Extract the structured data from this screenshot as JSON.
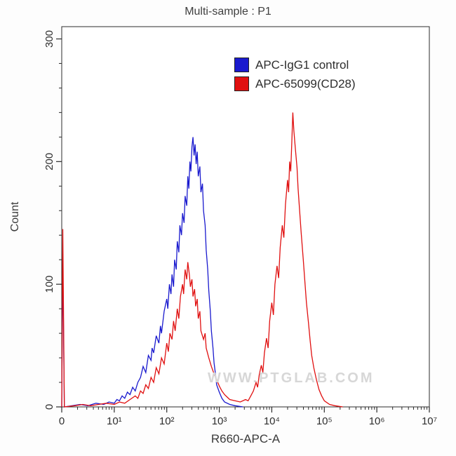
{
  "chart_data": {
    "type": "line",
    "title": "Multi-sample : P1",
    "xlabel": "R660-APC-A",
    "ylabel": "Count",
    "watermark": "WWW.PTGLAB.COM",
    "x_axis": {
      "scale": "log-decades",
      "range_u": [
        0,
        7
      ],
      "ticks": [
        {
          "u": 0,
          "label": "0"
        },
        {
          "u": 1,
          "label": "10¹"
        },
        {
          "u": 2,
          "label": "10²"
        },
        {
          "u": 3,
          "label": "10³"
        },
        {
          "u": 4,
          "label": "10⁴"
        },
        {
          "u": 5,
          "label": "10⁵"
        },
        {
          "u": 6,
          "label": "10⁶"
        },
        {
          "u": 7,
          "label": "10⁷"
        }
      ]
    },
    "y_axis": {
      "ticks": [
        0,
        100,
        200,
        300
      ],
      "minor_step": 20,
      "max": 310
    },
    "legend": [
      {
        "label": "APC-IgG1 control",
        "color": "#1a1ace"
      },
      {
        "label": "APC-65099(CD28)",
        "color": "#e01010"
      }
    ],
    "series": [
      {
        "name": "APC-IgG1 control",
        "color": "#1a1ace",
        "points": [
          [
            0.0,
            0
          ],
          [
            0.02,
            120
          ],
          [
            0.05,
            0
          ],
          [
            0.2,
            1
          ],
          [
            0.35,
            2
          ],
          [
            0.5,
            1
          ],
          [
            0.65,
            3
          ],
          [
            0.8,
            2
          ],
          [
            0.9,
            4
          ],
          [
            1.0,
            3
          ],
          [
            1.05,
            6
          ],
          [
            1.1,
            5
          ],
          [
            1.15,
            9
          ],
          [
            1.2,
            7
          ],
          [
            1.25,
            12
          ],
          [
            1.3,
            10
          ],
          [
            1.35,
            16
          ],
          [
            1.4,
            13
          ],
          [
            1.45,
            20
          ],
          [
            1.5,
            24
          ],
          [
            1.55,
            33
          ],
          [
            1.6,
            28
          ],
          [
            1.65,
            42
          ],
          [
            1.7,
            38
          ],
          [
            1.72,
            48
          ],
          [
            1.75,
            44
          ],
          [
            1.8,
            58
          ],
          [
            1.85,
            52
          ],
          [
            1.88,
            66
          ],
          [
            1.9,
            60
          ],
          [
            1.95,
            78
          ],
          [
            2.0,
            88
          ],
          [
            2.02,
            80
          ],
          [
            2.05,
            100
          ],
          [
            2.08,
            92
          ],
          [
            2.1,
            108
          ],
          [
            2.13,
            98
          ],
          [
            2.15,
            120
          ],
          [
            2.18,
            112
          ],
          [
            2.2,
            135
          ],
          [
            2.23,
            126
          ],
          [
            2.25,
            148
          ],
          [
            2.28,
            140
          ],
          [
            2.3,
            158
          ],
          [
            2.33,
            150
          ],
          [
            2.35,
            172
          ],
          [
            2.38,
            164
          ],
          [
            2.4,
            188
          ],
          [
            2.42,
            178
          ],
          [
            2.44,
            200
          ],
          [
            2.46,
            192
          ],
          [
            2.48,
            212
          ],
          [
            2.5,
            220
          ],
          [
            2.52,
            205
          ],
          [
            2.54,
            214
          ],
          [
            2.56,
            198
          ],
          [
            2.58,
            208
          ],
          [
            2.6,
            188
          ],
          [
            2.63,
            196
          ],
          [
            2.65,
            175
          ],
          [
            2.68,
            182
          ],
          [
            2.7,
            160
          ],
          [
            2.73,
            148
          ],
          [
            2.75,
            128
          ],
          [
            2.78,
            112
          ],
          [
            2.8,
            95
          ],
          [
            2.83,
            78
          ],
          [
            2.85,
            62
          ],
          [
            2.88,
            48
          ],
          [
            2.9,
            36
          ],
          [
            2.93,
            26
          ],
          [
            2.95,
            18
          ],
          [
            3.0,
            12
          ],
          [
            3.05,
            7
          ],
          [
            3.1,
            4
          ],
          [
            3.2,
            2
          ],
          [
            3.3,
            1
          ],
          [
            3.45,
            0
          ]
        ]
      },
      {
        "name": "APC-65099(CD28)",
        "color": "#e01010",
        "points": [
          [
            0.0,
            0
          ],
          [
            0.02,
            145
          ],
          [
            0.05,
            0
          ],
          [
            0.25,
            1
          ],
          [
            0.4,
            2
          ],
          [
            0.55,
            1
          ],
          [
            0.7,
            2
          ],
          [
            0.85,
            3
          ],
          [
            1.0,
            2
          ],
          [
            1.1,
            4
          ],
          [
            1.2,
            3
          ],
          [
            1.3,
            6
          ],
          [
            1.4,
            9
          ],
          [
            1.45,
            7
          ],
          [
            1.5,
            13
          ],
          [
            1.55,
            11
          ],
          [
            1.6,
            18
          ],
          [
            1.65,
            15
          ],
          [
            1.7,
            24
          ],
          [
            1.75,
            20
          ],
          [
            1.8,
            32
          ],
          [
            1.85,
            27
          ],
          [
            1.9,
            40
          ],
          [
            1.95,
            35
          ],
          [
            2.0,
            52
          ],
          [
            2.03,
            45
          ],
          [
            2.06,
            60
          ],
          [
            2.1,
            55
          ],
          [
            2.13,
            70
          ],
          [
            2.16,
            62
          ],
          [
            2.2,
            80
          ],
          [
            2.23,
            72
          ],
          [
            2.26,
            90
          ],
          [
            2.3,
            100
          ],
          [
            2.32,
            92
          ],
          [
            2.35,
            112
          ],
          [
            2.38,
            104
          ],
          [
            2.4,
            118
          ],
          [
            2.43,
            108
          ],
          [
            2.45,
            98
          ],
          [
            2.48,
            104
          ],
          [
            2.5,
            90
          ],
          [
            2.53,
            96
          ],
          [
            2.55,
            82
          ],
          [
            2.58,
            88
          ],
          [
            2.6,
            72
          ],
          [
            2.63,
            78
          ],
          [
            2.65,
            62
          ],
          [
            2.7,
            55
          ],
          [
            2.73,
            60
          ],
          [
            2.75,
            48
          ],
          [
            2.8,
            40
          ],
          [
            2.85,
            33
          ],
          [
            2.9,
            27
          ],
          [
            2.95,
            22
          ],
          [
            3.0,
            17
          ],
          [
            3.05,
            13
          ],
          [
            3.1,
            10
          ],
          [
            3.15,
            8
          ],
          [
            3.2,
            6
          ],
          [
            3.3,
            5
          ],
          [
            3.4,
            4
          ],
          [
            3.5,
            6
          ],
          [
            3.55,
            5
          ],
          [
            3.6,
            9
          ],
          [
            3.65,
            13
          ],
          [
            3.7,
            20
          ],
          [
            3.73,
            16
          ],
          [
            3.76,
            26
          ],
          [
            3.8,
            34
          ],
          [
            3.83,
            28
          ],
          [
            3.86,
            44
          ],
          [
            3.9,
            56
          ],
          [
            3.93,
            48
          ],
          [
            3.96,
            70
          ],
          [
            4.0,
            85
          ],
          [
            4.03,
            75
          ],
          [
            4.06,
            100
          ],
          [
            4.1,
            115
          ],
          [
            4.13,
            105
          ],
          [
            4.16,
            130
          ],
          [
            4.2,
            148
          ],
          [
            4.23,
            138
          ],
          [
            4.26,
            165
          ],
          [
            4.3,
            185
          ],
          [
            4.32,
            175
          ],
          [
            4.34,
            200
          ],
          [
            4.36,
            192
          ],
          [
            4.38,
            215
          ],
          [
            4.4,
            240
          ],
          [
            4.42,
            225
          ],
          [
            4.45,
            210
          ],
          [
            4.48,
            195
          ],
          [
            4.5,
            178
          ],
          [
            4.53,
            160
          ],
          [
            4.56,
            142
          ],
          [
            4.6,
            120
          ],
          [
            4.63,
            102
          ],
          [
            4.66,
            85
          ],
          [
            4.7,
            68
          ],
          [
            4.73,
            54
          ],
          [
            4.76,
            42
          ],
          [
            4.8,
            32
          ],
          [
            4.85,
            22
          ],
          [
            4.9,
            14
          ],
          [
            4.95,
            9
          ],
          [
            5.0,
            5
          ],
          [
            5.1,
            2
          ],
          [
            5.2,
            1
          ],
          [
            5.35,
            0
          ]
        ]
      }
    ]
  }
}
